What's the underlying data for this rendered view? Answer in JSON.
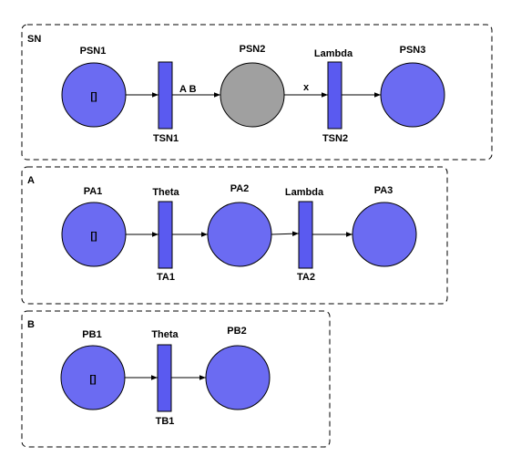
{
  "colors": {
    "place": "#6b6bf2",
    "place_active": "#a0a0a0",
    "transition": "#5a5af0",
    "frame": "#000000"
  },
  "modules": [
    {
      "label": "SN",
      "places": [
        {
          "name": "PSN1",
          "token": "[]"
        },
        {
          "name": "PSN2",
          "token": ""
        },
        {
          "name": "PSN3",
          "token": ""
        }
      ],
      "transitions": [
        {
          "name": "TSN1",
          "guard": ""
        },
        {
          "name": "TSN2",
          "guard": "Lambda"
        }
      ],
      "arc_labels": [
        "A  B",
        "x"
      ]
    },
    {
      "label": "A",
      "places": [
        {
          "name": "PA1",
          "token": "[]"
        },
        {
          "name": "PA2",
          "token": ""
        },
        {
          "name": "PA3",
          "token": ""
        }
      ],
      "transitions": [
        {
          "name": "TA1",
          "guard": "Theta"
        },
        {
          "name": "TA2",
          "guard": "Lambda"
        }
      ]
    },
    {
      "label": "B",
      "places": [
        {
          "name": "PB1",
          "token": "[]"
        },
        {
          "name": "PB2",
          "token": ""
        }
      ],
      "transitions": [
        {
          "name": "TB1",
          "guard": "Theta"
        }
      ]
    }
  ]
}
